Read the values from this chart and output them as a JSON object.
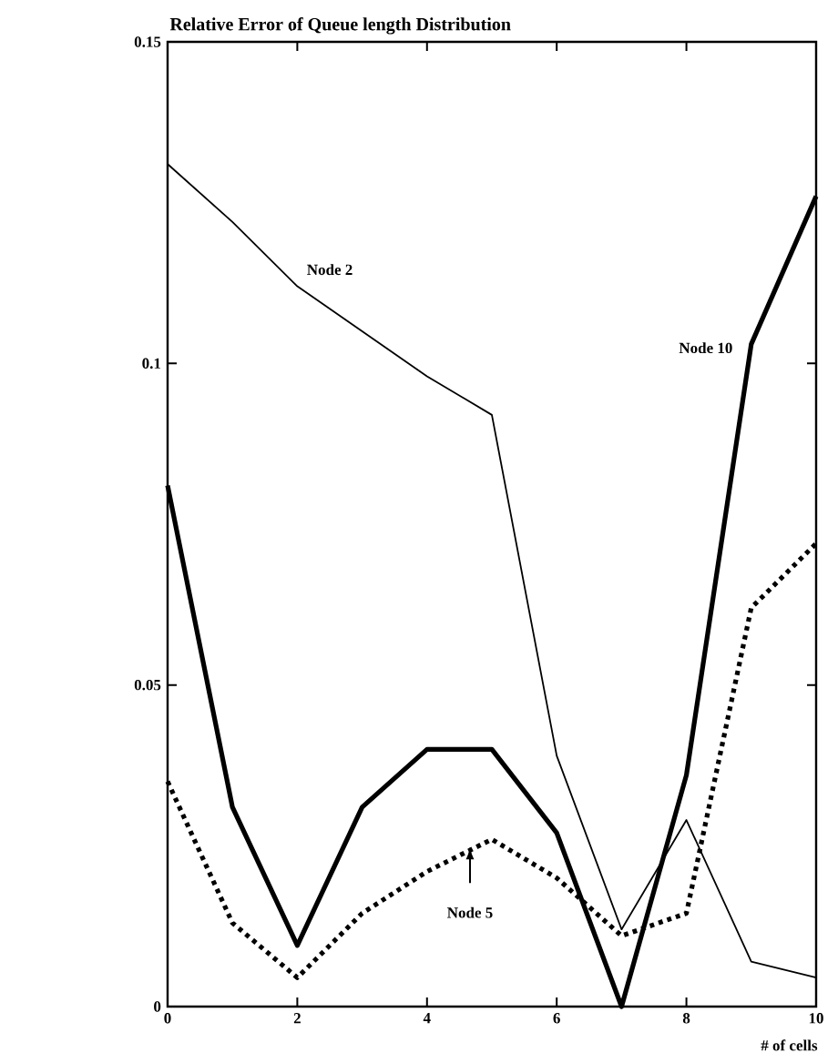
{
  "chart_data": {
    "type": "line",
    "title": "Relative Error of Queue length Distribution",
    "xlabel": "# of cells",
    "x": [
      0,
      1,
      2,
      3,
      4,
      5,
      6,
      7,
      8,
      9,
      10
    ],
    "series": [
      {
        "name": "Node 2",
        "color": "#000000",
        "line_style": "solid",
        "values": [
          0.131,
          0.122,
          0.112,
          0.105,
          0.098,
          0.092,
          0.039,
          0.012,
          0.029,
          0.007,
          0.0045
        ]
      },
      {
        "name": "Node 10",
        "color": "#000000",
        "line_style": "solid",
        "values": [
          0.081,
          0.031,
          0.0095,
          0.031,
          0.04,
          0.04,
          0.027,
          0.0,
          0.036,
          0.103,
          0.126
        ]
      },
      {
        "name": "Node 5",
        "color": "#000000",
        "line_style": "dotted",
        "values": [
          0.035,
          0.013,
          0.0045,
          0.0145,
          0.021,
          0.026,
          0.02,
          0.011,
          0.0145,
          0.062,
          0.072
        ]
      }
    ],
    "xlim": [
      0,
      10
    ],
    "ylim": [
      0,
      0.15
    ],
    "xticks": [
      0,
      2,
      4,
      6,
      8,
      10
    ],
    "yticks": [
      0,
      0.05,
      0.1,
      0.15
    ]
  }
}
